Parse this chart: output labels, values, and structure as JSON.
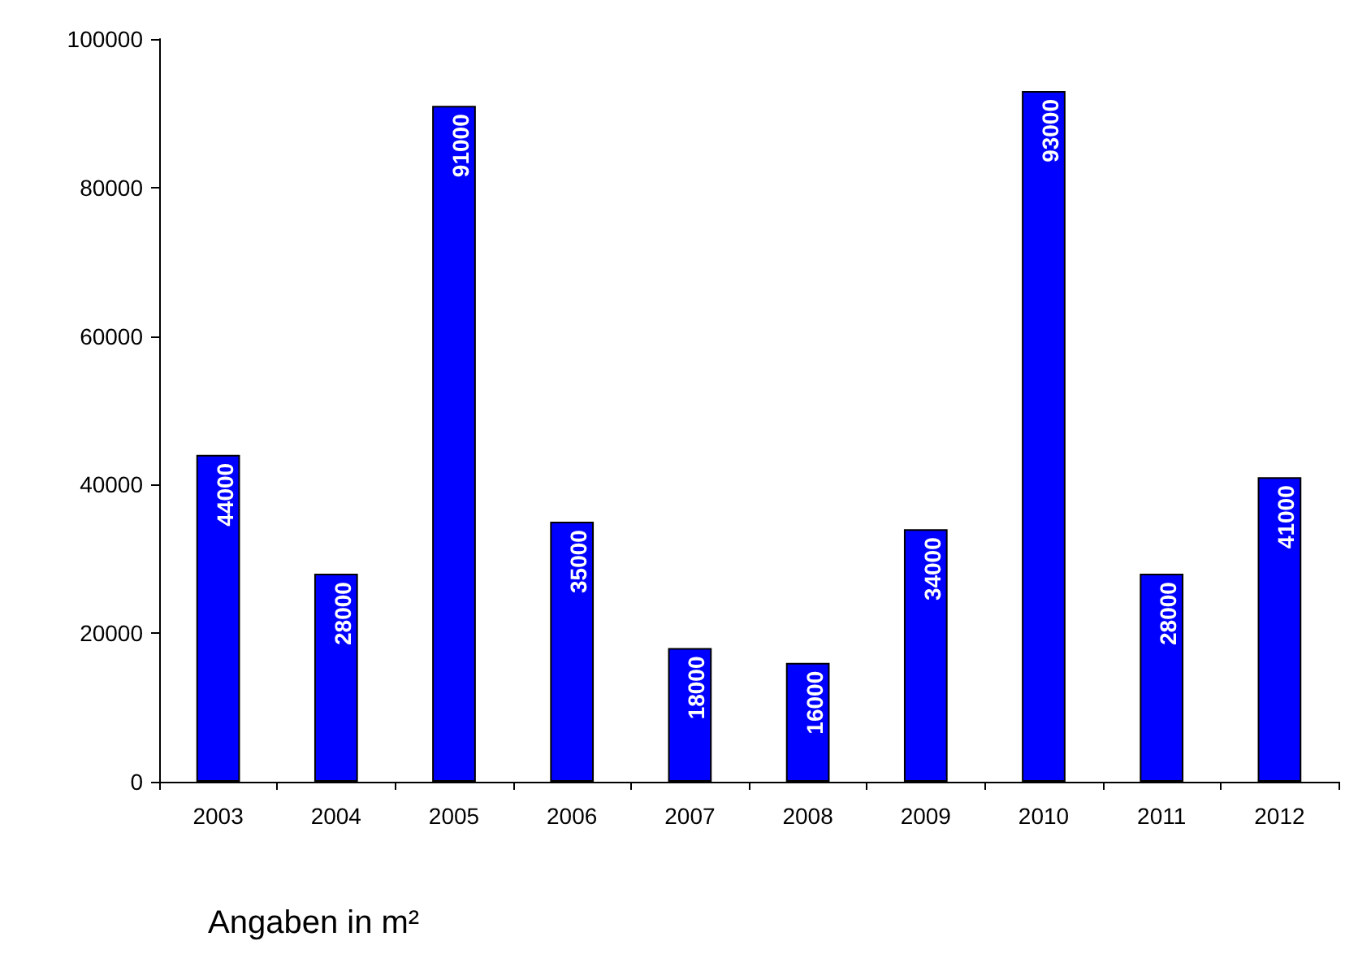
{
  "chart_data": {
    "type": "bar",
    "categories": [
      "2003",
      "2004",
      "2005",
      "2006",
      "2007",
      "2008",
      "2009",
      "2010",
      "2011",
      "2012"
    ],
    "values": [
      44000,
      28000,
      91000,
      35000,
      18000,
      16000,
      34000,
      93000,
      28000,
      41000
    ],
    "color": "#0000ff",
    "ylim": [
      0,
      100000
    ],
    "yticks": [
      0,
      20000,
      40000,
      60000,
      80000,
      100000
    ],
    "grid": false,
    "data_labels": true,
    "annotations": [
      "Angaben in m²"
    ]
  }
}
